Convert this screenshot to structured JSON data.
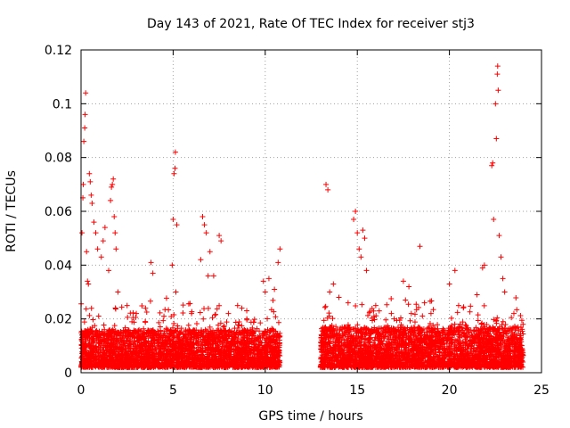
{
  "chart_data": {
    "type": "scatter",
    "title": "Day 143 of 2021, Rate Of TEC Index for receiver stj3",
    "xlabel": "GPS time / hours",
    "ylabel": "ROTI / TECUs",
    "xlim": [
      0,
      25
    ],
    "ylim": [
      0,
      0.12
    ],
    "xticks": [
      0,
      5,
      10,
      15,
      20,
      25
    ],
    "xtick_labels": [
      "0",
      "5",
      "10",
      "15",
      "20",
      "25"
    ],
    "yticks": [
      0,
      0.02,
      0.04,
      0.06,
      0.08,
      0.1,
      0.12
    ],
    "ytick_labels": [
      "0",
      "0.02",
      "0.04",
      "0.06",
      "0.08",
      "0.1",
      "0.12"
    ],
    "grid": true,
    "marker": "+",
    "series": [
      {
        "name": "ROTI",
        "color": "#ff0000",
        "points": [
          [
            0.05,
            0.052
          ],
          [
            0.1,
            0.065
          ],
          [
            0.12,
            0.07
          ],
          [
            0.15,
            0.086
          ],
          [
            0.2,
            0.091
          ],
          [
            0.22,
            0.096
          ],
          [
            0.25,
            0.104
          ],
          [
            0.3,
            0.045
          ],
          [
            0.35,
            0.034
          ],
          [
            0.4,
            0.033
          ],
          [
            0.45,
            0.074
          ],
          [
            0.5,
            0.071
          ],
          [
            0.55,
            0.066
          ],
          [
            0.6,
            0.063
          ],
          [
            0.7,
            0.056
          ],
          [
            0.8,
            0.052
          ],
          [
            0.9,
            0.046
          ],
          [
            1.1,
            0.043
          ],
          [
            1.2,
            0.049
          ],
          [
            1.3,
            0.054
          ],
          [
            1.5,
            0.038
          ],
          [
            1.6,
            0.064
          ],
          [
            1.65,
            0.069
          ],
          [
            1.7,
            0.07
          ],
          [
            1.75,
            0.072
          ],
          [
            1.8,
            0.058
          ],
          [
            1.85,
            0.052
          ],
          [
            1.9,
            0.046
          ],
          [
            2.0,
            0.03
          ],
          [
            2.5,
            0.025
          ],
          [
            3.0,
            0.022
          ],
          [
            3.5,
            0.024
          ],
          [
            3.8,
            0.041
          ],
          [
            3.9,
            0.037
          ],
          [
            4.5,
            0.021
          ],
          [
            4.95,
            0.04
          ],
          [
            5.0,
            0.057
          ],
          [
            5.05,
            0.074
          ],
          [
            5.1,
            0.076
          ],
          [
            5.12,
            0.082
          ],
          [
            5.15,
            0.03
          ],
          [
            5.2,
            0.055
          ],
          [
            6.0,
            0.022
          ],
          [
            6.5,
            0.042
          ],
          [
            6.6,
            0.058
          ],
          [
            6.7,
            0.055
          ],
          [
            6.8,
            0.052
          ],
          [
            6.9,
            0.036
          ],
          [
            7.0,
            0.045
          ],
          [
            7.2,
            0.036
          ],
          [
            7.5,
            0.051
          ],
          [
            7.6,
            0.049
          ],
          [
            8.0,
            0.022
          ],
          [
            8.5,
            0.025
          ],
          [
            9.0,
            0.02
          ],
          [
            9.9,
            0.034
          ],
          [
            10.0,
            0.03
          ],
          [
            10.2,
            0.035
          ],
          [
            10.5,
            0.031
          ],
          [
            10.7,
            0.041
          ],
          [
            10.8,
            0.046
          ],
          [
            13.3,
            0.07
          ],
          [
            13.4,
            0.068
          ],
          [
            13.5,
            0.03
          ],
          [
            13.7,
            0.033
          ],
          [
            14.0,
            0.028
          ],
          [
            14.5,
            0.026
          ],
          [
            14.8,
            0.057
          ],
          [
            14.9,
            0.06
          ],
          [
            15.0,
            0.052
          ],
          [
            15.1,
            0.046
          ],
          [
            15.2,
            0.043
          ],
          [
            15.3,
            0.053
          ],
          [
            15.4,
            0.05
          ],
          [
            15.5,
            0.038
          ],
          [
            16.0,
            0.025
          ],
          [
            17.0,
            0.02
          ],
          [
            17.5,
            0.034
          ],
          [
            17.8,
            0.032
          ],
          [
            18.4,
            0.047
          ],
          [
            19.0,
            0.022
          ],
          [
            20.0,
            0.033
          ],
          [
            20.3,
            0.038
          ],
          [
            20.5,
            0.025
          ],
          [
            21.5,
            0.029
          ],
          [
            21.8,
            0.039
          ],
          [
            21.9,
            0.04
          ],
          [
            22.3,
            0.077
          ],
          [
            22.35,
            0.078
          ],
          [
            22.4,
            0.057
          ],
          [
            22.5,
            0.1
          ],
          [
            22.55,
            0.087
          ],
          [
            22.6,
            0.111
          ],
          [
            22.62,
            0.114
          ],
          [
            22.65,
            0.105
          ],
          [
            22.7,
            0.051
          ],
          [
            22.8,
            0.043
          ],
          [
            22.9,
            0.035
          ],
          [
            23.0,
            0.03
          ],
          [
            23.5,
            0.022
          ],
          [
            24.0,
            0.018
          ]
        ],
        "bands": [
          {
            "x": [
              0.0,
              10.8
            ],
            "y": [
              0.002,
              0.016
            ]
          },
          {
            "x": [
              13.0,
              24.0
            ],
            "y": [
              0.002,
              0.017
            ]
          }
        ]
      }
    ]
  }
}
